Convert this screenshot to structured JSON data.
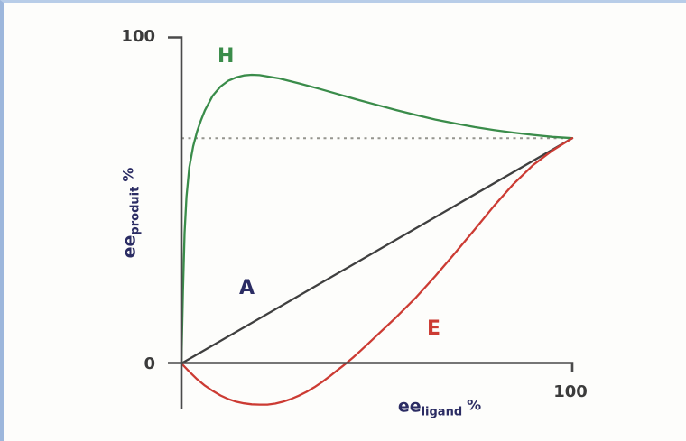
{
  "figure": {
    "ticks": {
      "y_max": "100",
      "y_zero": "0",
      "x_max": "100"
    },
    "y_axis_title": {
      "base": "ee",
      "subscript": "produit",
      "suffix": "%"
    },
    "x_axis_title": {
      "base": "ee",
      "subscript": "ligand",
      "suffix": "%"
    },
    "colors": {
      "axis": "#4a4a4a",
      "dashed_reference": "#95958f",
      "curve_H": "#3a8c4a",
      "curve_A": "#3f3f3f",
      "curve_E": "#cc3b33",
      "navy_text": "#2b2c63",
      "frame_border_top": "#b8cde8",
      "frame_border_left": "#9db7dc",
      "background": "#fdfdfb"
    }
  },
  "chart_data": {
    "type": "line",
    "title": "",
    "xlabel": "ee_ligand %",
    "ylabel": "ee_produit %",
    "xlim": [
      0,
      100
    ],
    "ylim": [
      -15,
      100
    ],
    "x_ticks": [
      0,
      100
    ],
    "y_ticks": [
      0,
      100
    ],
    "grid": false,
    "legend": "inline curve letters",
    "reference_line": {
      "y": 69,
      "style": "dashed",
      "color": "#95958f",
      "x_from": 0,
      "x_to": 100
    },
    "convergence_point": {
      "x": 100,
      "y": 69
    },
    "series": [
      {
        "name": "H",
        "color": "#3a8c4a",
        "points": [
          [
            0,
            0
          ],
          [
            0.4,
            22
          ],
          [
            0.8,
            40
          ],
          [
            1.3,
            51
          ],
          [
            2,
            60
          ],
          [
            3,
            66.5
          ],
          [
            4,
            71
          ],
          [
            5,
            74.5
          ],
          [
            6,
            77.5
          ],
          [
            8,
            82
          ],
          [
            10,
            84.8
          ],
          [
            12,
            86.6
          ],
          [
            14,
            87.6
          ],
          [
            16,
            88.2
          ],
          [
            18,
            88.4
          ],
          [
            20,
            88.3
          ],
          [
            25,
            87.3
          ],
          [
            30,
            85.8
          ],
          [
            35,
            84.2
          ],
          [
            40,
            82.5
          ],
          [
            45,
            80.8
          ],
          [
            50,
            79.2
          ],
          [
            55,
            77.6
          ],
          [
            60,
            76.1
          ],
          [
            65,
            74.7
          ],
          [
            70,
            73.5
          ],
          [
            75,
            72.4
          ],
          [
            80,
            71.5
          ],
          [
            85,
            70.7
          ],
          [
            90,
            70
          ],
          [
            95,
            69.4
          ],
          [
            100,
            69
          ]
        ]
      },
      {
        "name": "A",
        "color": "#3f3f3f",
        "points": [
          [
            0,
            0
          ],
          [
            100,
            69
          ]
        ]
      },
      {
        "name": "E",
        "color": "#cc3b33",
        "points": [
          [
            0,
            0
          ],
          [
            2,
            -2.5
          ],
          [
            4,
            -4.8
          ],
          [
            6,
            -6.8
          ],
          [
            8,
            -8.4
          ],
          [
            10,
            -9.8
          ],
          [
            12,
            -10.9
          ],
          [
            14,
            -11.7
          ],
          [
            16,
            -12.2
          ],
          [
            18,
            -12.5
          ],
          [
            20,
            -12.6
          ],
          [
            22,
            -12.6
          ],
          [
            24,
            -12.3
          ],
          [
            26,
            -11.7
          ],
          [
            28,
            -10.9
          ],
          [
            30,
            -9.9
          ],
          [
            32,
            -8.7
          ],
          [
            34,
            -7.3
          ],
          [
            36,
            -5.7
          ],
          [
            38,
            -3.9
          ],
          [
            40,
            -2
          ],
          [
            42,
            -0.1
          ],
          [
            44,
            1.9
          ],
          [
            46,
            4.1
          ],
          [
            48,
            6.3
          ],
          [
            50,
            8.6
          ],
          [
            55,
            14.2
          ],
          [
            60,
            20.2
          ],
          [
            65,
            26.8
          ],
          [
            70,
            33.8
          ],
          [
            75,
            41
          ],
          [
            80,
            48.3
          ],
          [
            85,
            55
          ],
          [
            90,
            60.8
          ],
          [
            95,
            65.3
          ],
          [
            100,
            69
          ]
        ]
      }
    ]
  }
}
